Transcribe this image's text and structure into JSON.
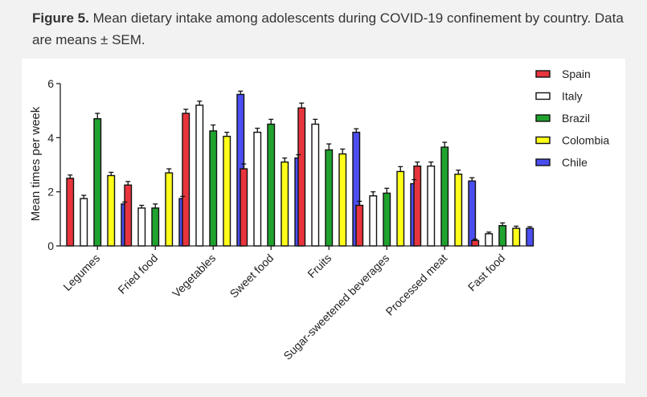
{
  "caption": {
    "label": "Figure 5.",
    "text": "Mean dietary intake among adolescents during COVID-19 confinement by country. Data are means ± SEM."
  },
  "chart_data": {
    "type": "bar",
    "ylabel": "Mean times per week",
    "xlabel": "",
    "ylim": [
      0,
      6
    ],
    "yticks": [
      0,
      2,
      4,
      6
    ],
    "legend_position": "top-right",
    "categories": [
      "Legumes",
      "Fried food",
      "Vegetables",
      "Sweet food",
      "Fruits",
      "Sugar-sweetened beverages",
      "Processed meat",
      "Fast food"
    ],
    "series": [
      {
        "name": "Spain",
        "color": "#e8343c",
        "values": [
          2.5,
          2.25,
          4.9,
          2.85,
          5.1,
          1.5,
          2.95,
          0.2
        ],
        "errors": [
          0.12,
          0.13,
          0.15,
          0.18,
          0.18,
          0.15,
          0.15,
          0.05
        ]
      },
      {
        "name": "Italy",
        "color": "#ffffff",
        "values": [
          1.75,
          1.4,
          5.2,
          4.2,
          4.5,
          1.85,
          2.95,
          0.45
        ],
        "errors": [
          0.12,
          0.1,
          0.15,
          0.15,
          0.18,
          0.15,
          0.15,
          0.06
        ]
      },
      {
        "name": "Brazil",
        "color": "#1fa32e",
        "values": [
          4.7,
          1.4,
          4.25,
          4.5,
          3.55,
          1.95,
          3.65,
          0.75
        ],
        "errors": [
          0.2,
          0.15,
          0.22,
          0.18,
          0.22,
          0.18,
          0.18,
          0.1
        ]
      },
      {
        "name": "Colombia",
        "color": "#ffff1a",
        "values": [
          2.6,
          2.7,
          4.05,
          3.1,
          3.4,
          2.75,
          2.65,
          0.65
        ],
        "errors": [
          0.12,
          0.15,
          0.15,
          0.15,
          0.18,
          0.18,
          0.15,
          0.08
        ]
      },
      {
        "name": "Chile",
        "color": "#4b4ef0",
        "values": [
          1.55,
          1.75,
          5.6,
          3.25,
          4.2,
          2.3,
          2.4,
          0.65
        ],
        "errors": [
          0.07,
          0.08,
          0.12,
          0.12,
          0.13,
          0.15,
          0.12,
          0.06
        ]
      }
    ]
  }
}
